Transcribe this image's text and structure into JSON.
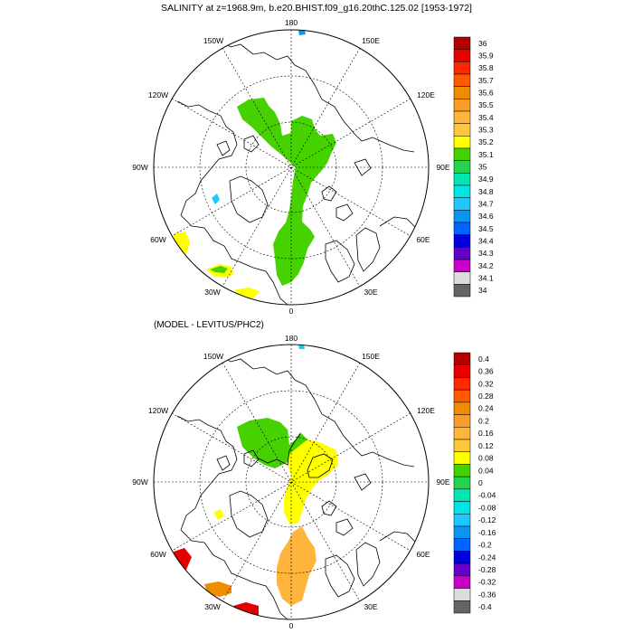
{
  "title": "SALINITY at z=1968.9m, b.e20.BHIST.f09_g16.20thC.125.02 [1953-1972]",
  "subtitle": "(MODEL - LEVITUS/PHC2)",
  "map_labels": {
    "lon180": "180",
    "lon150w": "150W",
    "lon150e": "150E",
    "lon120w": "120W",
    "lon120e": "120E",
    "lon90w": "90W",
    "lon90e": "90E",
    "lon60w": "60W",
    "lon60e": "60E",
    "lon30w": "30W",
    "lon30e": "30E",
    "lon0": "0"
  },
  "legend_top": {
    "labels": [
      "36",
      "35.9",
      "35.8",
      "35.7",
      "35.6",
      "35.5",
      "35.4",
      "35.3",
      "35.2",
      "35.1",
      "35",
      "34.9",
      "34.8",
      "34.7",
      "34.6",
      "34.5",
      "34.4",
      "34.3",
      "34.2",
      "34.1",
      "34"
    ],
    "colors": [
      "#b40000",
      "#e60000",
      "#ff2800",
      "#ff5a00",
      "#f08c00",
      "#fa9c28",
      "#ffb43c",
      "#ffc83c",
      "#ffff00",
      "#46d200",
      "#28d250",
      "#00e6b4",
      "#00e6e6",
      "#1ec8ff",
      "#0a96f0",
      "#0064ff",
      "#0000dc",
      "#6400c8",
      "#c800c8",
      "#dcdcdc",
      "#646464"
    ]
  },
  "legend_bottom": {
    "labels": [
      "0.4",
      "0.36",
      "0.32",
      "0.28",
      "0.24",
      "0.2",
      "0.16",
      "0.12",
      "0.08",
      "0.04",
      "0",
      "-0.04",
      "-0.08",
      "-0.12",
      "-0.16",
      "-0.2",
      "-0.24",
      "-0.28",
      "-0.32",
      "-0.36",
      "-0.4"
    ],
    "colors": [
      "#b40000",
      "#e60000",
      "#ff2800",
      "#ff5a00",
      "#f08c00",
      "#fa9c28",
      "#ffb43c",
      "#ffc83c",
      "#ffff00",
      "#46d200",
      "#28d250",
      "#00e6b4",
      "#00e6e6",
      "#1ec8ff",
      "#0a96f0",
      "#0064ff",
      "#0000dc",
      "#6400c8",
      "#c800c8",
      "#dcdcdc",
      "#646464"
    ]
  }
}
